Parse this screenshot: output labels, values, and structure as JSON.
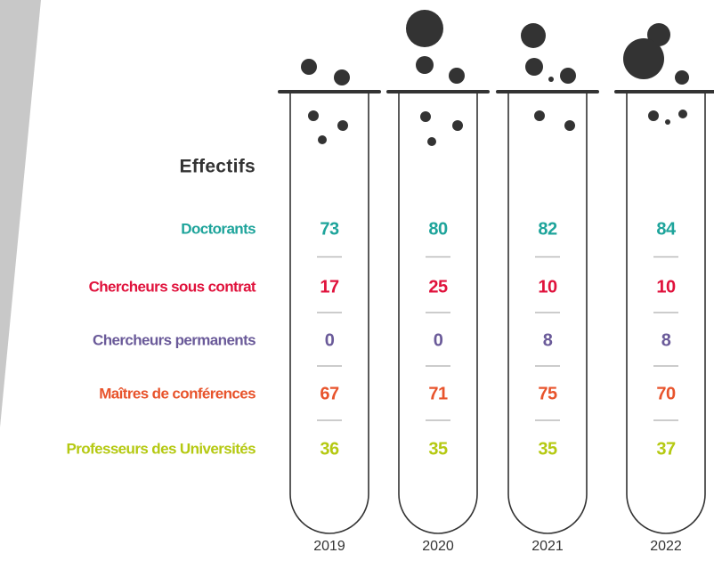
{
  "header": "Effectifs",
  "years": [
    "2019",
    "2020",
    "2021",
    "2022"
  ],
  "rows": [
    {
      "label": "Doctorants",
      "color": "#1ea49b",
      "values": [
        73,
        80,
        82,
        84
      ]
    },
    {
      "label": "Chercheurs sous contrat",
      "color": "#e0123c",
      "values": [
        17,
        25,
        10,
        10
      ]
    },
    {
      "label": "Chercheurs permanents",
      "color": "#6a5a99",
      "values": [
        0,
        0,
        8,
        8
      ]
    },
    {
      "label": "Maîtres de conférences",
      "color": "#e8542c",
      "values": [
        67,
        71,
        75,
        70
      ]
    },
    {
      "label": "Professeurs des Universités",
      "color": "#b5c912",
      "values": [
        36,
        35,
        35,
        37
      ]
    }
  ]
}
